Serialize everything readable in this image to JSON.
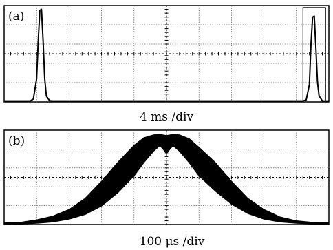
{
  "chart_data": [
    {
      "type": "line",
      "panel_label": "(a)",
      "caption": "4 ms /div",
      "xlim": [
        0,
        10
      ],
      "ylim": [
        0,
        5
      ],
      "grid": true,
      "series": [
        {
          "x": [
            0,
            0.8,
            0.9,
            1.0,
            1.05,
            1.1,
            1.15,
            1.2,
            1.25,
            1.3,
            1.4,
            1.5,
            9.2,
            9.3,
            9.4,
            9.45,
            9.5,
            9.55,
            9.6,
            9.65,
            9.7,
            9.8,
            10
          ],
          "y": [
            0.05,
            0.05,
            0.15,
            1.2,
            3.2,
            4.75,
            4.8,
            3.2,
            1.2,
            0.3,
            0.06,
            0.05,
            0.05,
            0.1,
            0.9,
            3.0,
            4.4,
            4.45,
            2.8,
            1.0,
            0.3,
            0.05,
            0.05
          ]
        }
      ]
    },
    {
      "type": "area",
      "panel_label": "(b)",
      "caption": "100 μs /div",
      "xlim": [
        0,
        10
      ],
      "ylim": [
        0,
        5
      ],
      "grid": true,
      "series": [
        {
          "x": [
            0,
            0.5,
            1.0,
            1.5,
            2.0,
            2.5,
            3.0,
            3.5,
            4.0,
            4.3,
            4.6,
            4.8,
            5.0,
            5.2,
            5.4,
            5.7,
            6.0,
            6.5,
            7.0,
            7.5,
            8.0,
            8.5,
            9.0,
            9.5,
            10
          ],
          "y_upper": [
            0.1,
            0.12,
            0.25,
            0.45,
            0.8,
            1.4,
            2.3,
            3.3,
            4.2,
            4.6,
            4.75,
            4.78,
            4.72,
            4.78,
            4.75,
            4.55,
            4.1,
            3.3,
            2.3,
            1.4,
            0.8,
            0.4,
            0.2,
            0.12,
            0.1
          ],
          "y_lower": [
            0.05,
            0.05,
            0.08,
            0.15,
            0.3,
            0.55,
            1.0,
            1.7,
            2.6,
            3.3,
            3.9,
            4.2,
            3.8,
            4.2,
            3.9,
            3.3,
            2.6,
            1.8,
            1.1,
            0.6,
            0.3,
            0.15,
            0.08,
            0.05,
            0.05
          ]
        }
      ]
    }
  ]
}
